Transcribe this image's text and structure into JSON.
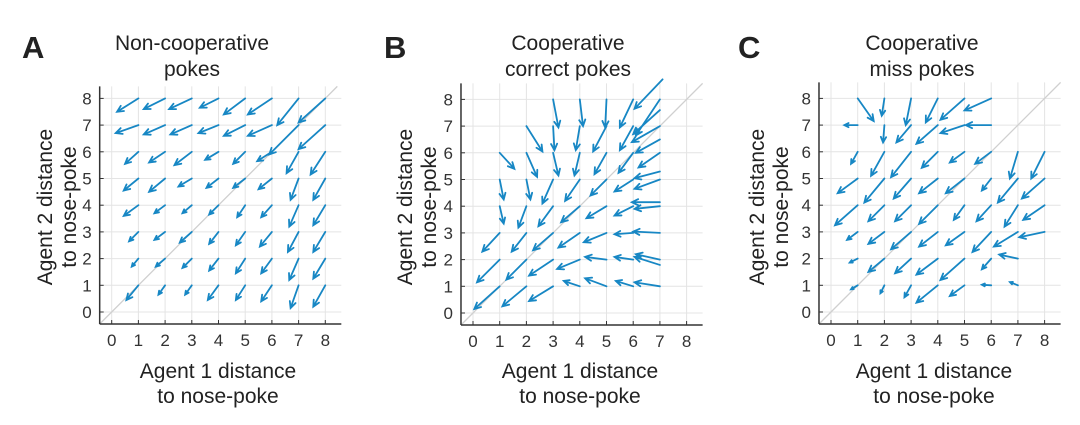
{
  "colors": {
    "arrow": "#1787c4",
    "grid": "#e4e4e4",
    "diagonal": "#d0d0d0",
    "axis": "#333333"
  },
  "chart_data": [
    {
      "type": "quiver",
      "panel_letter": "A",
      "title": [
        "Non-cooperative",
        "pokes"
      ],
      "xlabel": [
        "Agent 1 distance",
        "to nose-poke"
      ],
      "ylabel": [
        "Agent 2 distance",
        "to nose-poke"
      ],
      "xticks": [
        "0",
        "1",
        "2",
        "3",
        "4",
        "5",
        "6",
        "7",
        "8"
      ],
      "yticks": [
        "0",
        "1",
        "2",
        "3",
        "4",
        "5",
        "6",
        "7",
        "8"
      ],
      "xlim": [
        -0.45,
        8.6
      ],
      "ylim": [
        -0.45,
        8.45
      ],
      "grid": true,
      "diagonal_y_equals_x": true,
      "arrows_xyuv": [
        [
          1,
          8,
          -0.8,
          -0.5
        ],
        [
          2,
          8,
          -0.8,
          -0.4
        ],
        [
          3,
          8,
          -0.85,
          -0.4
        ],
        [
          4,
          8,
          -0.7,
          -0.35
        ],
        [
          5,
          8,
          -0.8,
          -0.6
        ],
        [
          6,
          8,
          -0.9,
          -0.6
        ],
        [
          7,
          8,
          -0.8,
          -1.0
        ],
        [
          8,
          8,
          -1.0,
          -0.9
        ],
        [
          1,
          7,
          -0.85,
          -0.3
        ],
        [
          2,
          7,
          -0.8,
          -0.35
        ],
        [
          3,
          7,
          -0.8,
          -0.35
        ],
        [
          4,
          7,
          -0.75,
          -0.3
        ],
        [
          5,
          7,
          -0.8,
          -0.4
        ],
        [
          6,
          7,
          -0.9,
          -0.4
        ],
        [
          7,
          7,
          -1.1,
          -1.1
        ],
        [
          8,
          7,
          -1.0,
          -0.9
        ],
        [
          1,
          6,
          -0.5,
          -0.45
        ],
        [
          2,
          6,
          -0.6,
          -0.4
        ],
        [
          3,
          6,
          -0.65,
          -0.5
        ],
        [
          4,
          6,
          -0.5,
          -0.3
        ],
        [
          5,
          6,
          -0.45,
          -0.45
        ],
        [
          6,
          6,
          -0.55,
          -0.35
        ],
        [
          7,
          6,
          -0.45,
          -0.8
        ],
        [
          8,
          6,
          -0.55,
          -0.85
        ],
        [
          1,
          5,
          -0.55,
          -0.45
        ],
        [
          2,
          5,
          -0.6,
          -0.5
        ],
        [
          3,
          5,
          -0.5,
          -0.3
        ],
        [
          4,
          5,
          -0.45,
          -0.35
        ],
        [
          5,
          5,
          -0.45,
          -0.35
        ],
        [
          6,
          5,
          -0.5,
          -0.4
        ],
        [
          7,
          5,
          -0.3,
          -0.8
        ],
        [
          8,
          5,
          -0.45,
          -0.8
        ],
        [
          1,
          4,
          -0.55,
          -0.4
        ],
        [
          2,
          4,
          -0.4,
          -0.3
        ],
        [
          3,
          4,
          -0.35,
          -0.3
        ],
        [
          4,
          4,
          -0.35,
          -0.35
        ],
        [
          5,
          4,
          -0.3,
          -0.45
        ],
        [
          6,
          4,
          -0.4,
          -0.45
        ],
        [
          7,
          4,
          -0.35,
          -0.8
        ],
        [
          8,
          4,
          -0.45,
          -0.75
        ],
        [
          1,
          3,
          -0.35,
          -0.35
        ],
        [
          2,
          3,
          -0.4,
          -0.3
        ],
        [
          3,
          3,
          -0.45,
          -0.4
        ],
        [
          4,
          3,
          -0.35,
          -0.45
        ],
        [
          5,
          3,
          -0.35,
          -0.5
        ],
        [
          6,
          3,
          -0.45,
          -0.55
        ],
        [
          7,
          3,
          -0.4,
          -0.75
        ],
        [
          8,
          3,
          -0.45,
          -0.75
        ],
        [
          1,
          2,
          -0.25,
          -0.3
        ],
        [
          2,
          2,
          -0.35,
          -0.3
        ],
        [
          3,
          2,
          -0.35,
          -0.35
        ],
        [
          4,
          2,
          -0.35,
          -0.45
        ],
        [
          5,
          2,
          -0.35,
          -0.55
        ],
        [
          6,
          2,
          -0.4,
          -0.55
        ],
        [
          7,
          2,
          -0.35,
          -0.8
        ],
        [
          8,
          2,
          -0.45,
          -0.75
        ],
        [
          1,
          1,
          -0.45,
          -0.55
        ],
        [
          2,
          1,
          -0.25,
          -0.35
        ],
        [
          3,
          1,
          -0.25,
          -0.35
        ],
        [
          4,
          1,
          -0.4,
          -0.55
        ],
        [
          5,
          1,
          -0.35,
          -0.55
        ],
        [
          6,
          1,
          -0.4,
          -0.6
        ],
        [
          7,
          1,
          -0.3,
          -0.85
        ],
        [
          8,
          1,
          -0.45,
          -0.8
        ]
      ]
    },
    {
      "type": "quiver",
      "panel_letter": "B",
      "title": [
        "Cooperative",
        "correct pokes"
      ],
      "xlabel": [
        "Agent 1 distance",
        "to nose-poke"
      ],
      "ylabel": [
        "Agent 2 distance",
        "to nose-poke"
      ],
      "xticks": [
        "0",
        "1",
        "2",
        "3",
        "4",
        "5",
        "6",
        "7",
        "8"
      ],
      "yticks": [
        "0",
        "1",
        "2",
        "3",
        "4",
        "5",
        "6",
        "7",
        "8"
      ],
      "xlim": [
        -0.45,
        8.6
      ],
      "ylim": [
        -0.45,
        8.6
      ],
      "grid": true,
      "diagonal_y_equals_x": true,
      "arrows_xyuv": [
        [
          3,
          8,
          0.2,
          -1.05
        ],
        [
          4,
          8,
          0.12,
          -1.0
        ],
        [
          5,
          8,
          -0.05,
          -1.05
        ],
        [
          6,
          8,
          -0.5,
          -1.05
        ],
        [
          7.1,
          8.75,
          -1.05,
          -1.1
        ],
        [
          7,
          8,
          -0.9,
          -1.35
        ],
        [
          7,
          7.6,
          -1.0,
          -0.9
        ],
        [
          7,
          7,
          -1.05,
          -0.6
        ],
        [
          7,
          6.5,
          -0.9,
          -0.5
        ],
        [
          2,
          7,
          0.6,
          -0.95
        ],
        [
          3,
          7,
          0.05,
          -0.9
        ],
        [
          4,
          7,
          -0.15,
          -0.9
        ],
        [
          5,
          7,
          -0.5,
          -0.95
        ],
        [
          6,
          7,
          -0.5,
          -0.9
        ],
        [
          1,
          6,
          0.55,
          -0.6
        ],
        [
          2,
          6,
          0.4,
          -0.9
        ],
        [
          3,
          6,
          0.2,
          -0.85
        ],
        [
          4,
          6,
          -0.2,
          -0.85
        ],
        [
          5,
          6,
          -0.45,
          -0.8
        ],
        [
          6,
          6,
          -0.55,
          -0.75
        ],
        [
          7,
          6,
          -0.8,
          -0.55
        ],
        [
          1,
          5,
          0.15,
          -0.75
        ],
        [
          2,
          5,
          0.15,
          -0.75
        ],
        [
          3,
          5,
          -0.4,
          -0.9
        ],
        [
          4,
          5,
          -0.55,
          -0.8
        ],
        [
          5,
          5,
          -0.6,
          -0.6
        ],
        [
          6,
          5,
          -0.7,
          -0.45
        ],
        [
          7,
          5.3,
          -0.95,
          -0.25
        ],
        [
          7,
          5,
          -0.95,
          -0.35
        ],
        [
          1,
          4,
          0.15,
          -0.65
        ],
        [
          2,
          4,
          -0.3,
          -0.8
        ],
        [
          3,
          4,
          -0.55,
          -0.75
        ],
        [
          4,
          4,
          -0.7,
          -0.6
        ],
        [
          5,
          4,
          -0.75,
          -0.45
        ],
        [
          6,
          4,
          -0.7,
          -0.35
        ],
        [
          7,
          4.15,
          -1.05,
          0.0
        ],
        [
          7,
          4,
          -0.95,
          -0.1
        ],
        [
          1,
          3,
          -0.65,
          -0.7
        ],
        [
          2,
          3,
          -0.55,
          -0.7
        ],
        [
          3,
          3,
          -0.75,
          -0.65
        ],
        [
          4,
          3,
          -0.8,
          -0.55
        ],
        [
          5,
          3,
          -0.85,
          -0.35
        ],
        [
          6,
          3,
          -0.7,
          -0.05
        ],
        [
          7,
          3,
          -1.0,
          0.05
        ],
        [
          1,
          2,
          -0.85,
          -0.85
        ],
        [
          2,
          2,
          -0.75,
          -0.75
        ],
        [
          3,
          2,
          -0.9,
          -0.6
        ],
        [
          4,
          2,
          -0.85,
          -0.35
        ],
        [
          5,
          2,
          -0.8,
          0.1
        ],
        [
          6,
          2,
          -0.7,
          0.1
        ],
        [
          7,
          1.8,
          -0.95,
          0.3
        ],
        [
          7,
          2,
          -0.9,
          0.2
        ],
        [
          1,
          1,
          -0.95,
          -0.85
        ],
        [
          2,
          1,
          -0.9,
          -0.75
        ],
        [
          3,
          1,
          -0.9,
          -0.55
        ],
        [
          4,
          1,
          -0.6,
          0.2
        ],
        [
          5,
          1,
          -0.8,
          0.3
        ],
        [
          6,
          1,
          -0.65,
          0.2
        ],
        [
          7,
          1,
          -0.95,
          0.15
        ]
      ]
    },
    {
      "type": "quiver",
      "panel_letter": "C",
      "title": [
        "Cooperative",
        "miss pokes"
      ],
      "xlabel": [
        "Agent 1 distance",
        "to nose-poke"
      ],
      "ylabel": [
        "Agent 2 distance",
        "to nose-poke"
      ],
      "xticks": [
        "0",
        "1",
        "2",
        "3",
        "4",
        "5",
        "6",
        "7",
        "8"
      ],
      "yticks": [
        "0",
        "1",
        "2",
        "3",
        "4",
        "5",
        "6",
        "7",
        "8"
      ],
      "xlim": [
        -0.45,
        8.6
      ],
      "ylim": [
        -0.45,
        8.6
      ],
      "grid": true,
      "diagonal_y_equals_x": true,
      "arrows_xyuv": [
        [
          1,
          8,
          0.6,
          -0.85
        ],
        [
          2,
          8,
          -0.1,
          -0.65
        ],
        [
          3,
          8,
          -0.2,
          -1.0
        ],
        [
          4,
          8,
          -0.45,
          -0.9
        ],
        [
          5,
          8,
          -0.9,
          -0.8
        ],
        [
          6,
          8,
          -1.0,
          -0.45
        ],
        [
          1,
          7,
          -0.5,
          0
        ],
        [
          2,
          7,
          -0.05,
          -0.65
        ],
        [
          3,
          7,
          -0.55,
          -0.65
        ],
        [
          4,
          7,
          -0.8,
          -0.7
        ],
        [
          5,
          7,
          -0.9,
          -0.3
        ],
        [
          6,
          7,
          -0.95,
          0
        ],
        [
          1,
          6,
          -0.25,
          -0.45
        ],
        [
          2,
          6,
          -0.5,
          -0.9
        ],
        [
          3,
          6,
          -0.75,
          -0.95
        ],
        [
          4,
          6,
          -0.6,
          -0.6
        ],
        [
          5,
          6,
          -0.55,
          -0.4
        ],
        [
          6,
          6,
          -0.6,
          -0.45
        ],
        [
          7,
          6,
          -0.3,
          -1.0
        ],
        [
          8,
          6,
          -0.5,
          -1.0
        ],
        [
          1,
          5,
          -0.75,
          -0.55
        ],
        [
          2,
          5,
          -0.75,
          -0.9
        ],
        [
          3,
          5,
          -0.65,
          -0.75
        ],
        [
          4,
          5,
          -0.7,
          -0.55
        ],
        [
          5,
          5,
          -0.7,
          -0.55
        ],
        [
          6,
          5,
          -0.35,
          -0.45
        ],
        [
          7,
          5,
          -0.75,
          -0.9
        ],
        [
          8,
          5,
          -0.85,
          -0.75
        ],
        [
          1,
          4,
          -0.85,
          -0.75
        ],
        [
          2,
          4,
          -0.6,
          -0.6
        ],
        [
          3,
          4,
          -0.6,
          -0.6
        ],
        [
          4,
          4,
          -0.7,
          -0.7
        ],
        [
          5,
          4,
          -0.4,
          -0.55
        ],
        [
          6,
          4,
          -0.55,
          -0.6
        ],
        [
          7,
          4,
          -0.5,
          -0.8
        ],
        [
          8,
          4,
          -0.8,
          -0.55
        ],
        [
          1,
          3,
          -0.4,
          -0.3
        ],
        [
          2,
          3,
          -0.6,
          -0.45
        ],
        [
          3,
          3,
          -0.75,
          -0.65
        ],
        [
          4,
          3,
          -0.7,
          -0.55
        ],
        [
          5,
          3,
          -0.7,
          -0.5
        ],
        [
          6,
          3,
          -0.7,
          -0.75
        ],
        [
          7,
          3,
          -0.9,
          -0.55
        ],
        [
          8,
          3,
          -0.95,
          -0.2
        ],
        [
          1,
          2,
          -0.3,
          -0.15
        ],
        [
          2,
          2,
          -0.6,
          -0.5
        ],
        [
          3,
          2,
          -0.6,
          -0.55
        ],
        [
          4,
          2,
          -0.8,
          -0.6
        ],
        [
          5,
          2,
          -0.9,
          -0.8
        ],
        [
          6,
          2,
          -0.35,
          -0.4
        ],
        [
          7,
          2,
          -0.7,
          0.15
        ],
        [
          1,
          1,
          -0.25,
          -0.15
        ],
        [
          2,
          1,
          -0.15,
          -0.3
        ],
        [
          3,
          1,
          -0.25,
          -0.45
        ],
        [
          4,
          1,
          -0.8,
          -0.65
        ],
        [
          5,
          1,
          -0.55,
          -0.4
        ],
        [
          6,
          1,
          -0.35,
          0.02
        ],
        [
          7,
          1,
          -0.3,
          0.12
        ]
      ]
    }
  ]
}
